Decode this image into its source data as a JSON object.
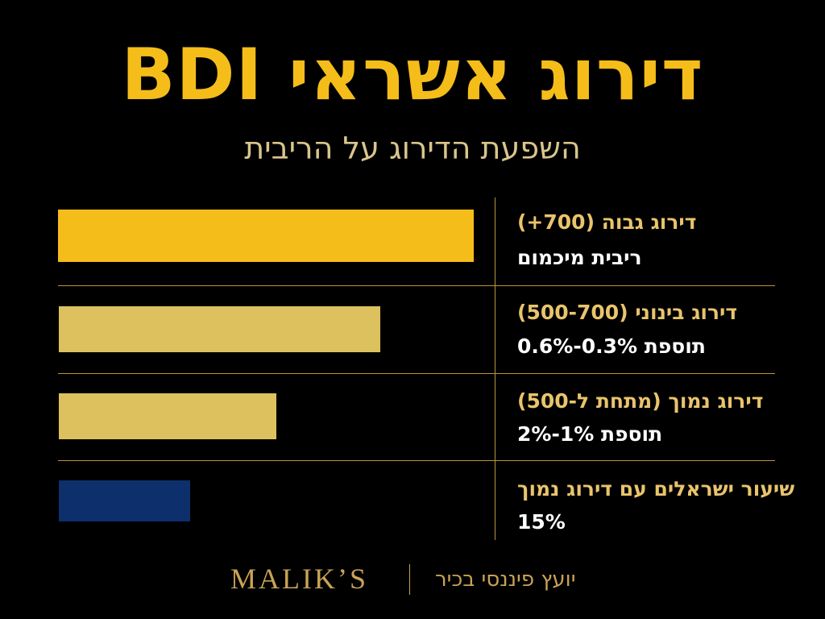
{
  "header": {
    "title": "דירוג אשראי BDI",
    "subtitle": "השפעת הדירוג על הריבית"
  },
  "rows": [
    {
      "label": "דירוג גבוה (700+)",
      "detail": "ריבית מיכמום"
    },
    {
      "label": "דירוג בינוני (500-700)",
      "detail": "תוספת 0.3%-0.6%"
    },
    {
      "label": "דירוג נמוך (מתחת ל-500)",
      "detail": "תוספת 1%-2%"
    },
    {
      "label": "שיעור ישראלים עם דירוג נמוך",
      "detail": "15%"
    }
  ],
  "footer": {
    "brand": "MALIK’S",
    "tagline": "יועץ פיננסי בכיר"
  }
}
